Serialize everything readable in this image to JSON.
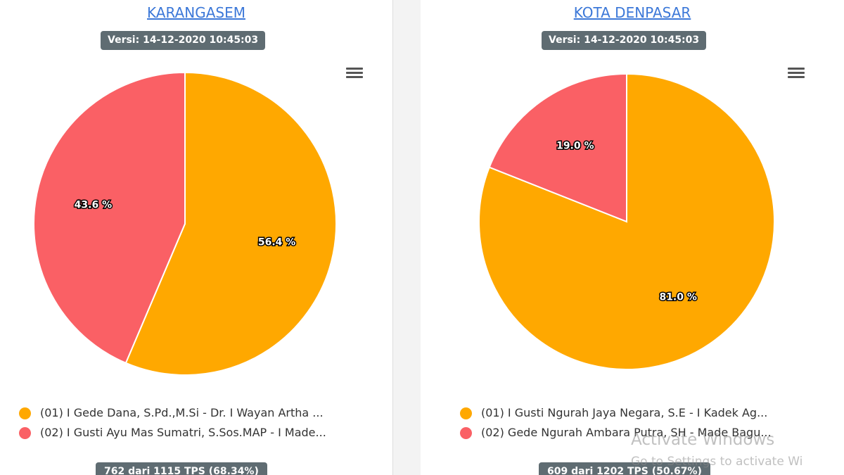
{
  "panels": [
    {
      "title": "KARANGASEM",
      "version": "Versi: 14-12-2020 10:45:03",
      "menu_icon": "hamburger-menu-icon",
      "chart_data": {
        "type": "pie",
        "slices": [
          {
            "label": "(01) I Gede Dana, S.Pd.,M.Si - Dr. I Wayan Artha ...",
            "value": 56.4,
            "value_label": "56.4 %",
            "color": "#ffa800"
          },
          {
            "label": "(02) I Gusti Ayu Mas Sumatri, S.Sos.MAP - I Made...",
            "value": 43.6,
            "value_label": "43.6 %",
            "color": "#fa6065"
          }
        ]
      },
      "tps": "762 dari 1115 TPS (68.34%)"
    },
    {
      "title": "KOTA DENPASAR",
      "version": "Versi: 14-12-2020 10:45:03",
      "menu_icon": "hamburger-menu-icon",
      "chart_data": {
        "type": "pie",
        "slices": [
          {
            "label": "(01) I Gusti Ngurah Jaya Negara, S.E - I Kadek Ag...",
            "value": 81.0,
            "value_label": "81.0 %",
            "color": "#ffa800"
          },
          {
            "label": "(02) Gede Ngurah Ambara Putra, SH - Made Bagu...",
            "value": 19.0,
            "value_label": "19.0 %",
            "color": "#fa6065"
          }
        ]
      },
      "tps": "609 dari 1202 TPS (50.67%)"
    }
  ],
  "watermark": {
    "line1": "Activate Windows",
    "line2": "Go to Settings to activate Wi"
  }
}
